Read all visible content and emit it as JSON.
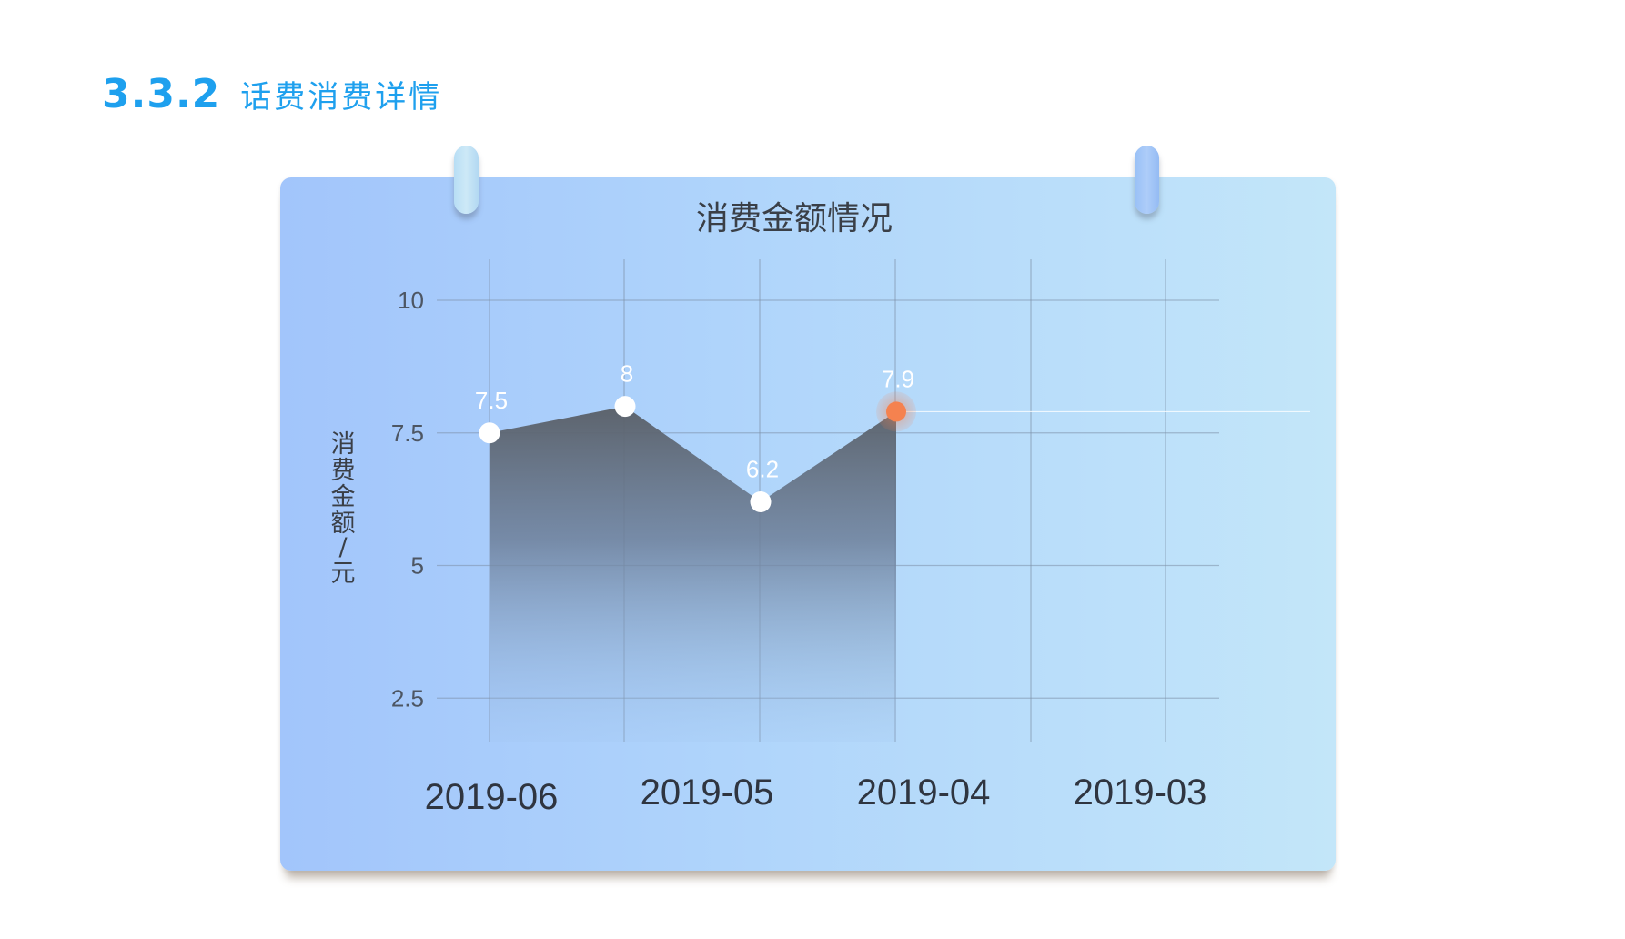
{
  "section": {
    "number": "3.3.2",
    "title": "话费消费详情"
  },
  "colors": {
    "heading": "#1ea0ee",
    "highlight_point": "#f5824f",
    "point": "#ffffff",
    "area_top": "#5a6068"
  },
  "chart_data": {
    "type": "area",
    "title": "消费金额情况",
    "ylabel": "消费金额/元",
    "xlabel": "",
    "categories": [
      "2019-06",
      "2019-05",
      "2019-04",
      "2019-03"
    ],
    "values": [
      7.5,
      8,
      6.2,
      7.9
    ],
    "y_ticks": [
      "2.5",
      "5",
      "7.5",
      "10"
    ],
    "ylim": [
      0,
      10
    ],
    "grid": true,
    "highlight": "2019-03"
  }
}
